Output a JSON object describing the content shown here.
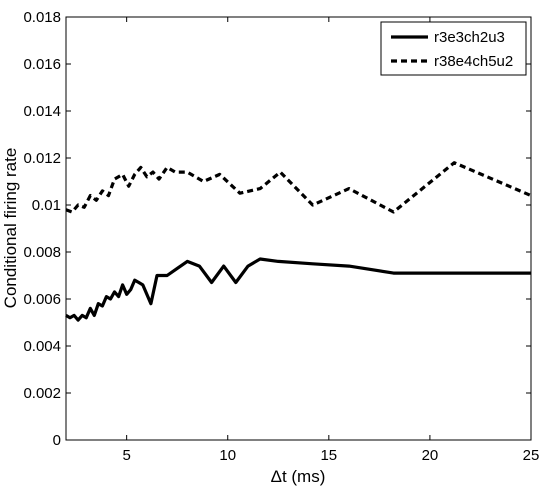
{
  "chart_data": {
    "type": "line",
    "xlabel": "Δt (ms)",
    "ylabel": "Conditional firing rate",
    "xlim": [
      2,
      25
    ],
    "ylim": [
      0,
      0.018
    ],
    "xticks": [
      5,
      10,
      15,
      20,
      25
    ],
    "yticks": [
      0,
      0.002,
      0.004,
      0.006,
      0.008,
      0.01,
      0.012,
      0.014,
      0.016,
      0.018
    ],
    "xtick_labels": [
      "5",
      "10",
      "15",
      "20",
      "25"
    ],
    "ytick_labels": [
      "0",
      "0.002",
      "0.004",
      "0.006",
      "0.008",
      "0.01",
      "0.012",
      "0.014",
      "0.016",
      "0.018"
    ],
    "grid": false,
    "legend_position": "top-right",
    "series": [
      {
        "name": "r3e3ch2u3",
        "style": "solid",
        "color": "#000000",
        "x": [
          2.0,
          2.2,
          2.4,
          2.6,
          2.8,
          3.0,
          3.2,
          3.4,
          3.6,
          3.8,
          4.0,
          4.2,
          4.4,
          4.6,
          4.8,
          5.0,
          5.2,
          5.4,
          5.6,
          5.8,
          6.2,
          6.5,
          7.0,
          7.5,
          8.0,
          8.6,
          9.2,
          9.8,
          10.4,
          11.0,
          11.6,
          12.5,
          14.2,
          16.0,
          18.2,
          21.0,
          25.0
        ],
        "y": [
          0.0053,
          0.0052,
          0.0053,
          0.0051,
          0.0053,
          0.0052,
          0.0056,
          0.0053,
          0.0058,
          0.0057,
          0.0061,
          0.006,
          0.0063,
          0.0061,
          0.0066,
          0.0062,
          0.0064,
          0.0068,
          0.0067,
          0.0066,
          0.0058,
          0.007,
          0.007,
          0.0073,
          0.0076,
          0.0074,
          0.0067,
          0.0074,
          0.0067,
          0.0074,
          0.0077,
          0.0076,
          0.0075,
          0.0074,
          0.0071,
          0.0071,
          0.0071
        ]
      },
      {
        "name": "r38e4ch5u2",
        "style": "dashed",
        "color": "#000000",
        "x": [
          2.0,
          2.3,
          2.6,
          2.9,
          3.2,
          3.5,
          3.8,
          4.1,
          4.4,
          4.8,
          5.1,
          5.4,
          5.7,
          6.0,
          6.3,
          6.6,
          7.0,
          7.4,
          8.0,
          8.8,
          9.6,
          10.6,
          11.6,
          12.6,
          14.2,
          16.0,
          18.2,
          21.2,
          25.0
        ],
        "y": [
          0.0098,
          0.0097,
          0.01,
          0.0099,
          0.0104,
          0.0102,
          0.0106,
          0.0104,
          0.0111,
          0.0113,
          0.0108,
          0.0113,
          0.0116,
          0.0112,
          0.0114,
          0.0111,
          0.0116,
          0.0114,
          0.0114,
          0.011,
          0.0113,
          0.0105,
          0.0107,
          0.0114,
          0.01,
          0.0107,
          0.0097,
          0.0118,
          0.0104
        ]
      }
    ]
  }
}
